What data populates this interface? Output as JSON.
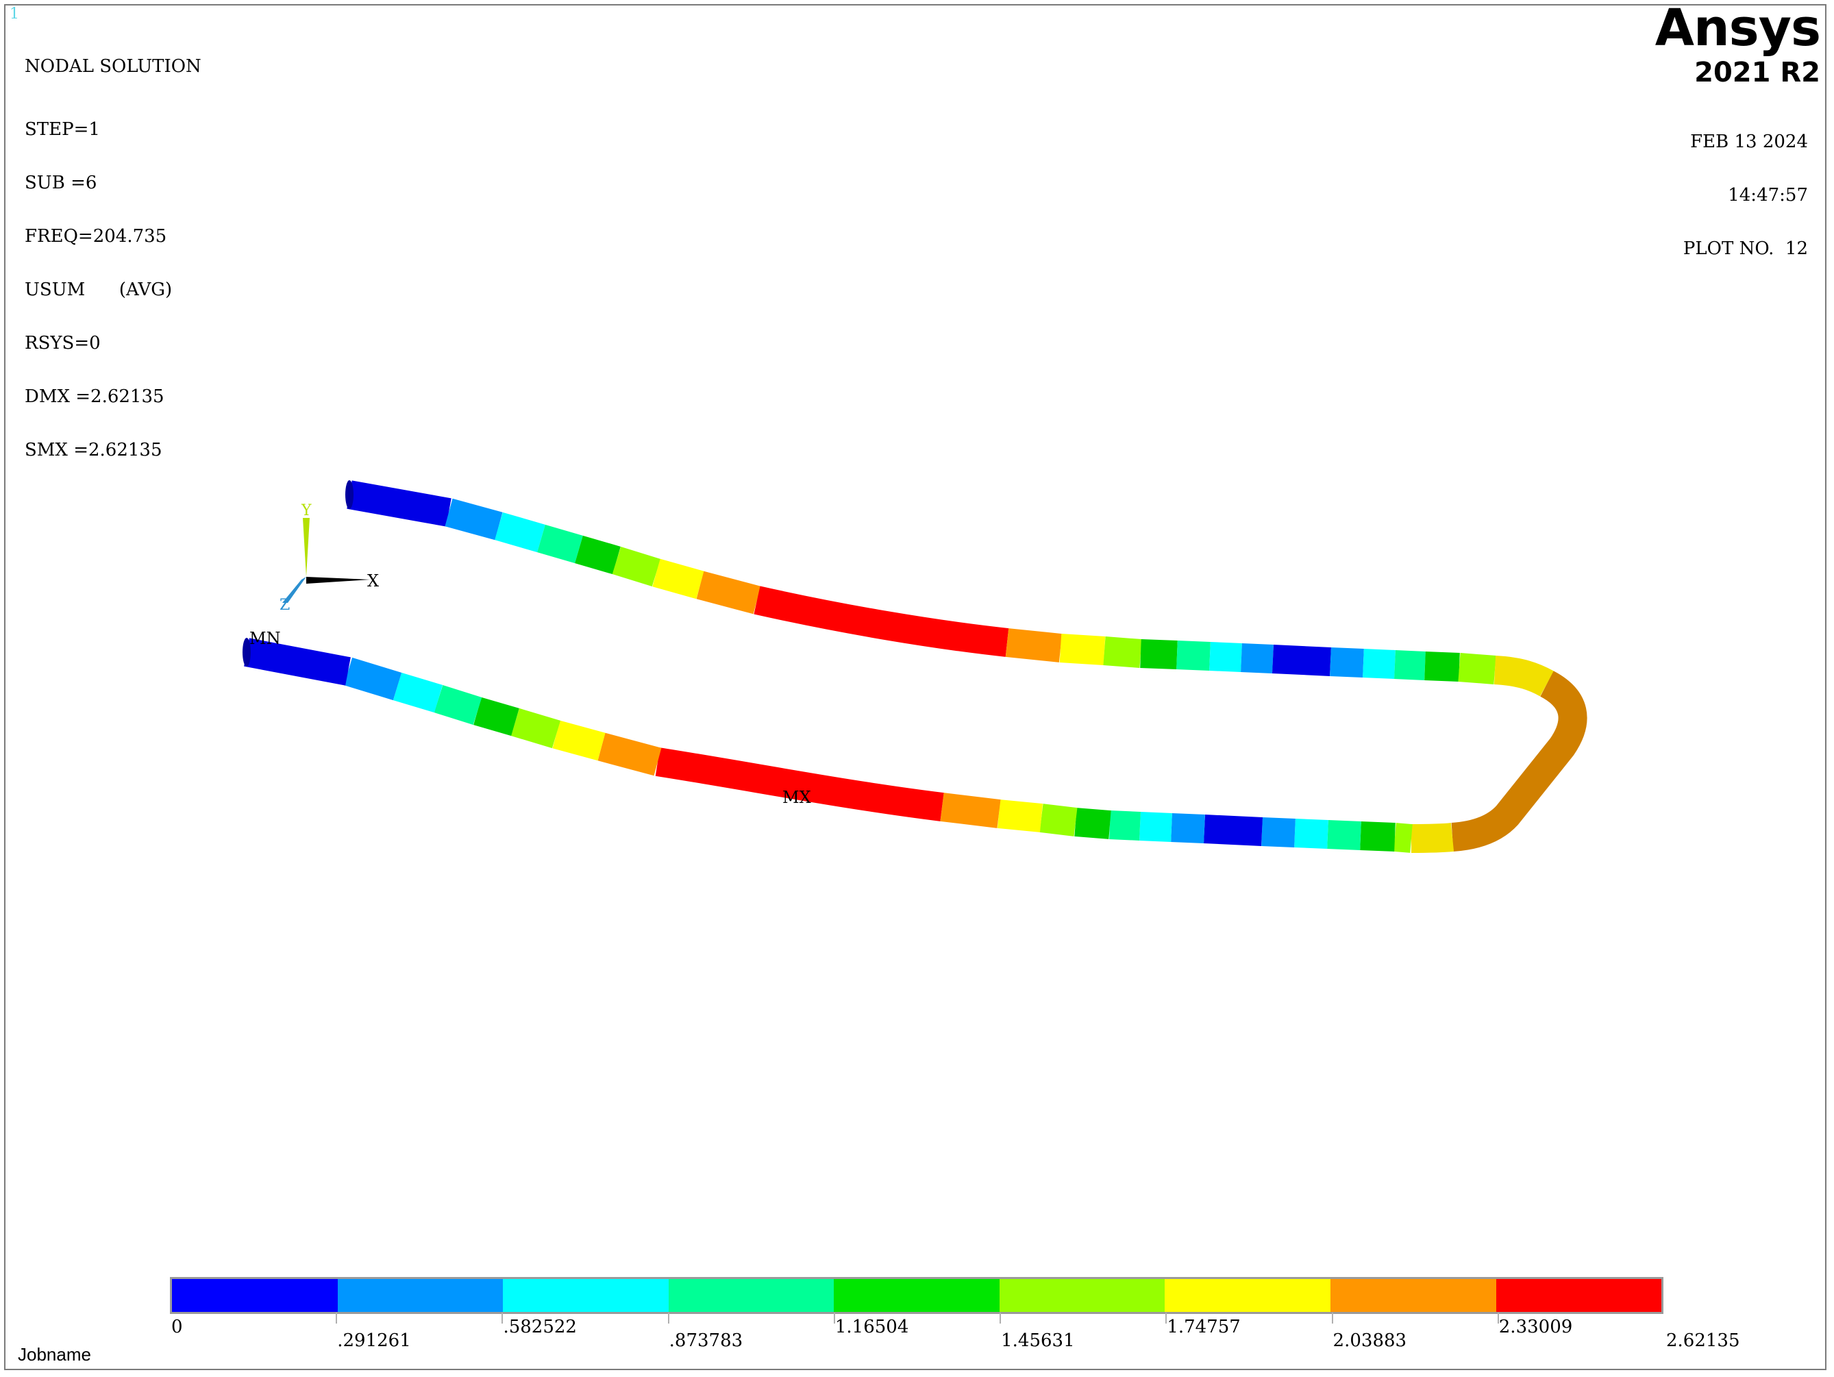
{
  "window_number": "1",
  "info": {
    "title": "NODAL SOLUTION",
    "lines": [
      "STEP=1",
      "SUB =6",
      "FREQ=204.735",
      "USUM      (AVG)",
      "RSYS=0",
      "DMX =2.62135",
      "SMX =2.62135"
    ]
  },
  "brand": {
    "logo": "Ansys",
    "version": "2021 R2"
  },
  "stamp": {
    "date": "FEB 13 2024",
    "time": "14:47:57",
    "plot": "PLOT NO.  12"
  },
  "triad": {
    "x": "X",
    "y": "Y",
    "z": "Z"
  },
  "markers": {
    "min": "MN",
    "max": "MX"
  },
  "legend": {
    "colors": [
      "#0000ff",
      "#0096ff",
      "#00ffff",
      "#00ff96",
      "#00e600",
      "#96ff00",
      "#ffff00",
      "#ff9600",
      "#ff0000"
    ],
    "labels": [
      "0",
      ".291261",
      ".582522",
      ".873783",
      "1.16504",
      "1.45631",
      "1.74757",
      "2.03883",
      "2.33009",
      "2.62135"
    ]
  },
  "footer": {
    "jobname": "Jobname"
  }
}
